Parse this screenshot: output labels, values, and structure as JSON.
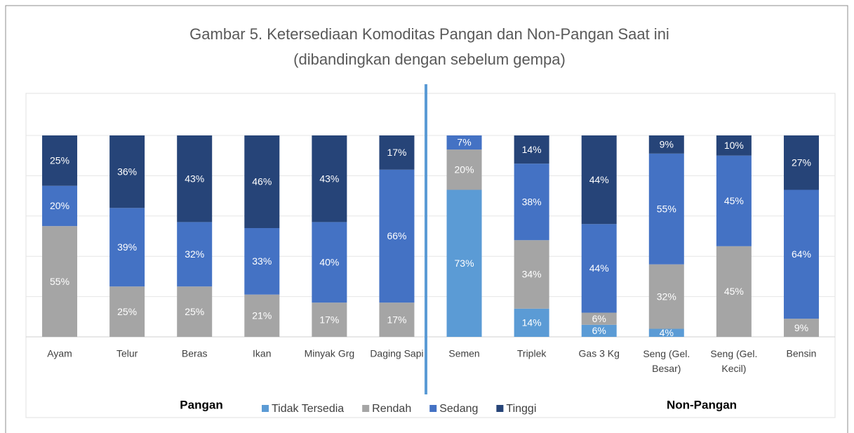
{
  "chart_data": {
    "type": "stacked_bar",
    "title": "Gambar 5. Ketersediaan Komoditas Pangan dan Non-Pangan Saat ini",
    "subtitle": "(dibandingkan dengan sebelum gempa)",
    "categories": [
      "Ayam",
      "Telur",
      "Beras",
      "Ikan",
      "Minyak Grg",
      "Daging Sapi",
      "Semen",
      "Triplek",
      "Gas 3 Kg",
      "Seng (Gel. Besar)",
      "Seng (Gel. Kecil)",
      "Bensin"
    ],
    "series": [
      {
        "name": "Tidak Tersedia",
        "color": "#5b9bd5",
        "values": [
          null,
          null,
          null,
          null,
          null,
          null,
          73,
          14,
          6,
          4,
          null,
          null
        ],
        "value_labels": [
          null,
          null,
          null,
          null,
          null,
          null,
          "73%",
          "14%",
          "6%",
          "4%",
          null,
          null
        ]
      },
      {
        "name": "Rendah",
        "color": "#a5a5a5",
        "values": [
          55,
          25,
          25,
          21,
          17,
          17,
          20,
          34,
          6,
          32,
          45,
          9
        ],
        "value_labels": [
          "55%",
          "25%",
          "25%",
          "21%",
          "17%",
          "17%",
          "20%",
          "34%",
          "6%",
          "32%",
          "45%",
          "9%"
        ]
      },
      {
        "name": "Sedang",
        "color": "#4472c4",
        "values": [
          20,
          39,
          32,
          33,
          40,
          66,
          7,
          38,
          44,
          55,
          45,
          64
        ],
        "value_labels": [
          "20%",
          "39%",
          "32%",
          "33%",
          "40%",
          "66%",
          "7%",
          "38%",
          "44%",
          "55%",
          "45%",
          "64%"
        ]
      },
      {
        "name": "Tinggi",
        "color": "#264478",
        "values": [
          25,
          36,
          43,
          46,
          43,
          17,
          null,
          14,
          44,
          9,
          10,
          27
        ],
        "value_labels": [
          "25%",
          "36%",
          "43%",
          "46%",
          "43%",
          "17%",
          null,
          "14%",
          "44%",
          "9%",
          "10%",
          "27%"
        ]
      }
    ],
    "group_labels": [
      "Pangan",
      "Non-Pangan"
    ],
    "ylim": [
      0,
      100
    ],
    "yticks": [
      0,
      20,
      40,
      60,
      80,
      100
    ],
    "grid": true,
    "legend": "bottom"
  }
}
